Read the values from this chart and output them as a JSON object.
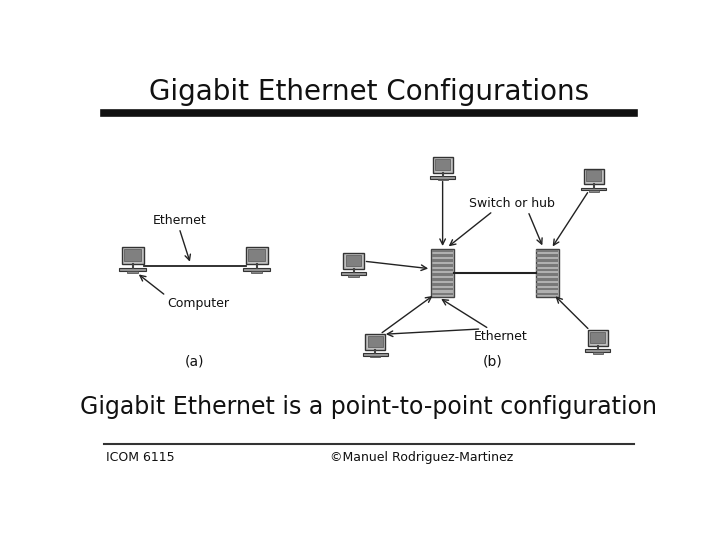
{
  "title": "Gigabit Ethernet Configurations",
  "subtitle": "Gigabit Ethernet is a point-to-point configuration",
  "footer_left": "ICOM 6115",
  "footer_right": "©Manuel Rodriguez-Martinez",
  "bg_color": "#ffffff",
  "title_fontsize": 20,
  "subtitle_fontsize": 17,
  "footer_fontsize": 9,
  "diagram_fontsize": 9,
  "label_a": "(a)",
  "label_b": "(b)",
  "label_ethernet_a": "Ethernet",
  "label_computer": "Computer",
  "label_switch": "Switch or hub",
  "label_ethernet_b": "Ethernet"
}
